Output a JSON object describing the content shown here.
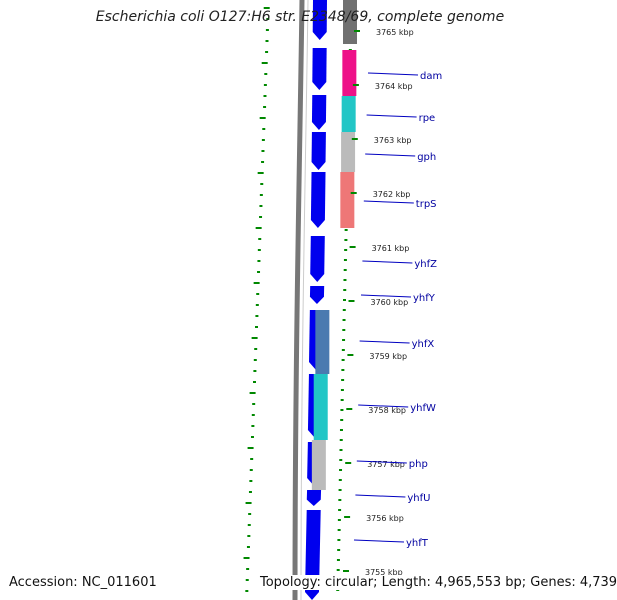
{
  "title": "Escherichia coli O127:H6 str. E2348/69, complete genome",
  "accession_text": "Accession: NC_011601",
  "summary_text": "Topology: circular; Length: 4,965,553 bp; Genes: 4,739",
  "colors": {
    "cds_forward": "#0000ee",
    "backbone": "#777777",
    "gc_ticks": "#008800",
    "gene_label": "#0000a0",
    "label_line": "#0000c0"
  },
  "kbp_labels": [
    "3765 kbp",
    "3764 kbp",
    "3763 kbp",
    "3762 kbp",
    "3761 kbp",
    "3760 kbp",
    "3759 kbp",
    "3758 kbp",
    "3757 kbp",
    "3756 kbp",
    "3755 kbp"
  ],
  "genes": [
    "dam",
    "rpe",
    "gph",
    "trpS",
    "yhfZ",
    "yhfY",
    "yhfX",
    "yhfW",
    "php",
    "yhfU",
    "yhfT"
  ],
  "category_colors": [
    "#707070",
    "#ee1188",
    "#22c6c6",
    "#bbbbbb",
    "#ee7777",
    "#4a7ab0",
    "#22c6c6",
    "#bbbbbb"
  ]
}
